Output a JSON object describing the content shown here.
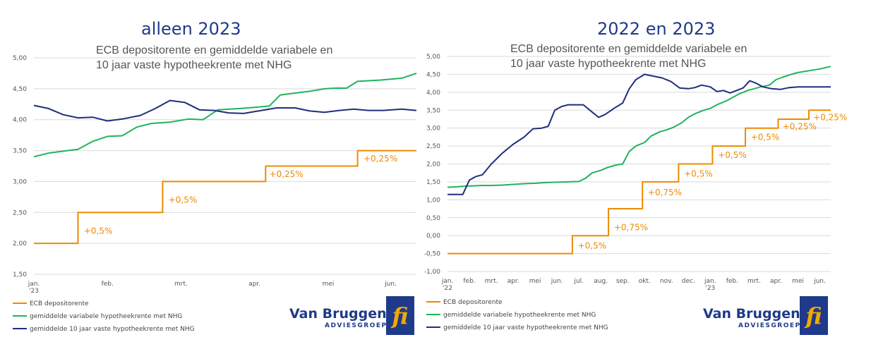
{
  "captions": {
    "left": "alleen 2023",
    "right": "2022 en 2023"
  },
  "colors": {
    "ecb": "#ED8B00",
    "variable": "#1FB45A",
    "fixed": "#1F2F7A",
    "grid": "#D9D9D9",
    "brand": "#1F3A8A"
  },
  "legend": {
    "ecb": "ECB depositorente",
    "variable": "gemiddelde variabele hypotheekrente met NHG",
    "fixed": "gemiddelde 10 jaar vaste hypotheekrente met NHG"
  },
  "logo": {
    "name": "Van Bruggen",
    "sub": "ADVIESGROEP",
    "mark": "fi"
  },
  "chart_data": [
    {
      "type": "line",
      "title_lines": [
        "ECB depositorente en gemiddelde variabele en",
        "10 jaar vaste hypotheekrente met NHG"
      ],
      "ylim": [
        1.5,
        5.0
      ],
      "yticks": [
        "1,50",
        "2,00",
        "2,50",
        "3,00",
        "3,50",
        "4,00",
        "4,50",
        "5,00"
      ],
      "xlim": [
        0,
        5.2
      ],
      "xticks": [
        {
          "pos": 0.0,
          "lines": [
            "jan.",
            "'23"
          ]
        },
        {
          "pos": 1.0,
          "lines": [
            "feb."
          ]
        },
        {
          "pos": 2.0,
          "lines": [
            "mrt."
          ]
        },
        {
          "pos": 3.0,
          "lines": [
            "apr."
          ]
        },
        {
          "pos": 4.0,
          "lines": [
            "mei"
          ]
        },
        {
          "pos": 4.85,
          "lines": [
            "jun."
          ]
        }
      ],
      "series": [
        {
          "name": "ecb",
          "step": true,
          "points": [
            [
              0,
              2.0
            ],
            [
              0.6,
              2.0
            ],
            [
              0.6,
              2.5
            ],
            [
              1.75,
              2.5
            ],
            [
              1.75,
              3.0
            ],
            [
              3.15,
              3.0
            ],
            [
              3.15,
              3.25
            ],
            [
              4.4,
              3.25
            ],
            [
              4.4,
              3.5
            ],
            [
              5.2,
              3.5
            ]
          ]
        },
        {
          "name": "variable",
          "points": [
            [
              0,
              3.4
            ],
            [
              0.2,
              3.46
            ],
            [
              0.45,
              3.5
            ],
            [
              0.6,
              3.52
            ],
            [
              0.8,
              3.65
            ],
            [
              1.0,
              3.73
            ],
            [
              1.2,
              3.74
            ],
            [
              1.4,
              3.88
            ],
            [
              1.6,
              3.94
            ],
            [
              1.85,
              3.96
            ],
            [
              2.1,
              4.01
            ],
            [
              2.3,
              4.0
            ],
            [
              2.5,
              4.16
            ],
            [
              2.8,
              4.18
            ],
            [
              3.0,
              4.2
            ],
            [
              3.2,
              4.22
            ],
            [
              3.35,
              4.4
            ],
            [
              3.55,
              4.43
            ],
            [
              3.75,
              4.46
            ],
            [
              3.95,
              4.5
            ],
            [
              4.1,
              4.51
            ],
            [
              4.25,
              4.51
            ],
            [
              4.4,
              4.62
            ],
            [
              4.7,
              4.64
            ],
            [
              5.0,
              4.67
            ],
            [
              5.2,
              4.75
            ]
          ]
        },
        {
          "name": "fixed",
          "points": [
            [
              0,
              4.23
            ],
            [
              0.2,
              4.18
            ],
            [
              0.4,
              4.08
            ],
            [
              0.6,
              4.03
            ],
            [
              0.8,
              4.04
            ],
            [
              1.0,
              3.98
            ],
            [
              1.2,
              4.01
            ],
            [
              1.45,
              4.07
            ],
            [
              1.65,
              4.18
            ],
            [
              1.85,
              4.31
            ],
            [
              2.05,
              4.28
            ],
            [
              2.25,
              4.16
            ],
            [
              2.45,
              4.15
            ],
            [
              2.65,
              4.11
            ],
            [
              2.85,
              4.1
            ],
            [
              3.05,
              4.14
            ],
            [
              3.3,
              4.19
            ],
            [
              3.55,
              4.19
            ],
            [
              3.75,
              4.14
            ],
            [
              3.95,
              4.12
            ],
            [
              4.15,
              4.15
            ],
            [
              4.35,
              4.17
            ],
            [
              4.55,
              4.15
            ],
            [
              4.75,
              4.15
            ],
            [
              5.0,
              4.17
            ],
            [
              5.2,
              4.15
            ]
          ]
        }
      ],
      "annotations": [
        {
          "text": "+0,5%",
          "x": 0.68,
          "y": 2.2
        },
        {
          "text": "+0,5%",
          "x": 1.83,
          "y": 2.7
        },
        {
          "text": "+0,25%",
          "x": 3.2,
          "y": 3.12
        },
        {
          "text": "+0,25%",
          "x": 4.48,
          "y": 3.37
        }
      ]
    },
    {
      "type": "line",
      "title_lines": [
        "ECB depositorente en gemiddelde variabele en",
        "10 jaar vaste hypotheekrente met NHG"
      ],
      "ylim": [
        -1.0,
        5.0
      ],
      "yticks": [
        "-1,00",
        "-0,50",
        "0,00",
        "0,50",
        "1,00",
        "1,50",
        "2,00",
        "2,50",
        "3,00",
        "3,50",
        "4,00",
        "4,50",
        "5,00"
      ],
      "xlim": [
        0,
        17.5
      ],
      "xticks": [
        {
          "pos": 0,
          "lines": [
            "jan.",
            "'22"
          ]
        },
        {
          "pos": 1,
          "lines": [
            "feb."
          ]
        },
        {
          "pos": 2,
          "lines": [
            "mrt."
          ]
        },
        {
          "pos": 3,
          "lines": [
            "apr."
          ]
        },
        {
          "pos": 4,
          "lines": [
            "mei"
          ]
        },
        {
          "pos": 5,
          "lines": [
            "jun."
          ]
        },
        {
          "pos": 6,
          "lines": [
            "jul."
          ]
        },
        {
          "pos": 7,
          "lines": [
            "aug."
          ]
        },
        {
          "pos": 8,
          "lines": [
            "sep."
          ]
        },
        {
          "pos": 9,
          "lines": [
            "okt."
          ]
        },
        {
          "pos": 10,
          "lines": [
            "nov."
          ]
        },
        {
          "pos": 11,
          "lines": [
            "dec."
          ]
        },
        {
          "pos": 12,
          "lines": [
            "jan.",
            "'23"
          ]
        },
        {
          "pos": 13,
          "lines": [
            "feb."
          ]
        },
        {
          "pos": 14,
          "lines": [
            "mrt."
          ]
        },
        {
          "pos": 15,
          "lines": [
            "apr."
          ]
        },
        {
          "pos": 16,
          "lines": [
            "mei"
          ]
        },
        {
          "pos": 17,
          "lines": [
            "jun."
          ]
        }
      ],
      "series": [
        {
          "name": "ecb",
          "step": true,
          "points": [
            [
              0,
              -0.5
            ],
            [
              5.7,
              -0.5
            ],
            [
              5.7,
              0.0
            ],
            [
              7.35,
              0.0
            ],
            [
              7.35,
              0.75
            ],
            [
              8.9,
              0.75
            ],
            [
              8.9,
              1.5
            ],
            [
              10.55,
              1.5
            ],
            [
              10.55,
              2.0
            ],
            [
              12.1,
              2.0
            ],
            [
              12.1,
              2.5
            ],
            [
              13.6,
              2.5
            ],
            [
              13.6,
              3.0
            ],
            [
              15.1,
              3.0
            ],
            [
              15.1,
              3.25
            ],
            [
              16.5,
              3.25
            ],
            [
              16.5,
              3.5
            ],
            [
              17.5,
              3.5
            ]
          ]
        },
        {
          "name": "variable",
          "points": [
            [
              0,
              1.35
            ],
            [
              0.4,
              1.36
            ],
            [
              0.8,
              1.38
            ],
            [
              1.2,
              1.39
            ],
            [
              1.6,
              1.4
            ],
            [
              2,
              1.4
            ],
            [
              2.5,
              1.41
            ],
            [
              3,
              1.43
            ],
            [
              3.5,
              1.45
            ],
            [
              4,
              1.46
            ],
            [
              4.5,
              1.48
            ],
            [
              5,
              1.49
            ],
            [
              5.5,
              1.5
            ],
            [
              6,
              1.51
            ],
            [
              6.3,
              1.6
            ],
            [
              6.6,
              1.75
            ],
            [
              7,
              1.82
            ],
            [
              7.3,
              1.9
            ],
            [
              7.7,
              1.97
            ],
            [
              8,
              2.0
            ],
            [
              8.3,
              2.35
            ],
            [
              8.6,
              2.5
            ],
            [
              9,
              2.6
            ],
            [
              9.3,
              2.78
            ],
            [
              9.7,
              2.9
            ],
            [
              10,
              2.95
            ],
            [
              10.3,
              3.02
            ],
            [
              10.7,
              3.15
            ],
            [
              11,
              3.3
            ],
            [
              11.3,
              3.4
            ],
            [
              11.7,
              3.5
            ],
            [
              12,
              3.55
            ],
            [
              12.3,
              3.65
            ],
            [
              12.7,
              3.75
            ],
            [
              13,
              3.85
            ],
            [
              13.3,
              3.95
            ],
            [
              13.7,
              4.05
            ],
            [
              14,
              4.1
            ],
            [
              14.3,
              4.15
            ],
            [
              14.7,
              4.2
            ],
            [
              15,
              4.35
            ],
            [
              15.3,
              4.42
            ],
            [
              15.7,
              4.5
            ],
            [
              16,
              4.55
            ],
            [
              16.5,
              4.6
            ],
            [
              17,
              4.65
            ],
            [
              17.5,
              4.72
            ]
          ]
        },
        {
          "name": "fixed",
          "points": [
            [
              0,
              1.15
            ],
            [
              0.5,
              1.15
            ],
            [
              0.7,
              1.15
            ],
            [
              1,
              1.55
            ],
            [
              1.3,
              1.65
            ],
            [
              1.6,
              1.7
            ],
            [
              2,
              2.0
            ],
            [
              2.5,
              2.3
            ],
            [
              3,
              2.55
            ],
            [
              3.5,
              2.75
            ],
            [
              3.9,
              2.98
            ],
            [
              4.3,
              3.0
            ],
            [
              4.6,
              3.05
            ],
            [
              4.9,
              3.5
            ],
            [
              5.2,
              3.6
            ],
            [
              5.5,
              3.65
            ],
            [
              5.8,
              3.65
            ],
            [
              6.2,
              3.65
            ],
            [
              6.6,
              3.45
            ],
            [
              6.9,
              3.3
            ],
            [
              7.2,
              3.38
            ],
            [
              7.6,
              3.55
            ],
            [
              8,
              3.7
            ],
            [
              8.3,
              4.1
            ],
            [
              8.6,
              4.35
            ],
            [
              9,
              4.5
            ],
            [
              9.4,
              4.45
            ],
            [
              9.8,
              4.4
            ],
            [
              10.2,
              4.3
            ],
            [
              10.6,
              4.12
            ],
            [
              11,
              4.1
            ],
            [
              11.3,
              4.13
            ],
            [
              11.6,
              4.2
            ],
            [
              12,
              4.15
            ],
            [
              12.3,
              4.02
            ],
            [
              12.6,
              4.05
            ],
            [
              12.9,
              3.98
            ],
            [
              13.2,
              4.05
            ],
            [
              13.5,
              4.12
            ],
            [
              13.8,
              4.32
            ],
            [
              14.1,
              4.25
            ],
            [
              14.4,
              4.15
            ],
            [
              14.8,
              4.1
            ],
            [
              15.2,
              4.08
            ],
            [
              15.6,
              4.13
            ],
            [
              16,
              4.15
            ],
            [
              16.4,
              4.15
            ],
            [
              16.8,
              4.15
            ],
            [
              17.5,
              4.15
            ]
          ]
        }
      ],
      "annotations": [
        {
          "text": "+0,5%",
          "x": 5.95,
          "y": -0.28
        },
        {
          "text": "+0,75%",
          "x": 7.6,
          "y": 0.23
        },
        {
          "text": "+0,75%",
          "x": 9.15,
          "y": 1.2
        },
        {
          "text": "+0,5%",
          "x": 10.8,
          "y": 1.72
        },
        {
          "text": "+0,5%",
          "x": 12.35,
          "y": 2.25
        },
        {
          "text": "+0,5%",
          "x": 13.85,
          "y": 2.75
        },
        {
          "text": "+0,25%",
          "x": 15.3,
          "y": 3.04
        },
        {
          "text": "+0,25%",
          "x": 16.7,
          "y": 3.3
        }
      ]
    }
  ]
}
